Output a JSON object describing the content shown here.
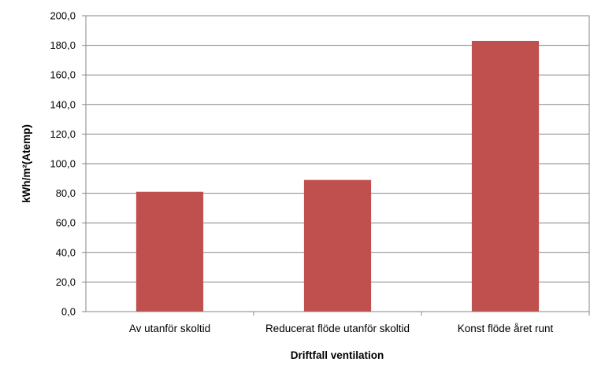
{
  "chart_data": {
    "type": "bar",
    "title": "",
    "xlabel": "Driftfall ventilation",
    "ylabel": "kWh/m²(Atemp)",
    "categories": [
      "Av utanför skoltid",
      "Reducerat flöde utanför skoltid",
      "Konst flöde året runt"
    ],
    "series": [
      {
        "values": [
          81,
          89,
          183
        ],
        "color": "#c0504d"
      }
    ],
    "ylim": [
      0,
      200
    ],
    "yticks": [
      "0,0",
      "20,0",
      "40,0",
      "60,0",
      "80,0",
      "100,0",
      "120,0",
      "140,0",
      "160,0",
      "180,0",
      "200,0"
    ],
    "grid": true,
    "legend": "none"
  }
}
